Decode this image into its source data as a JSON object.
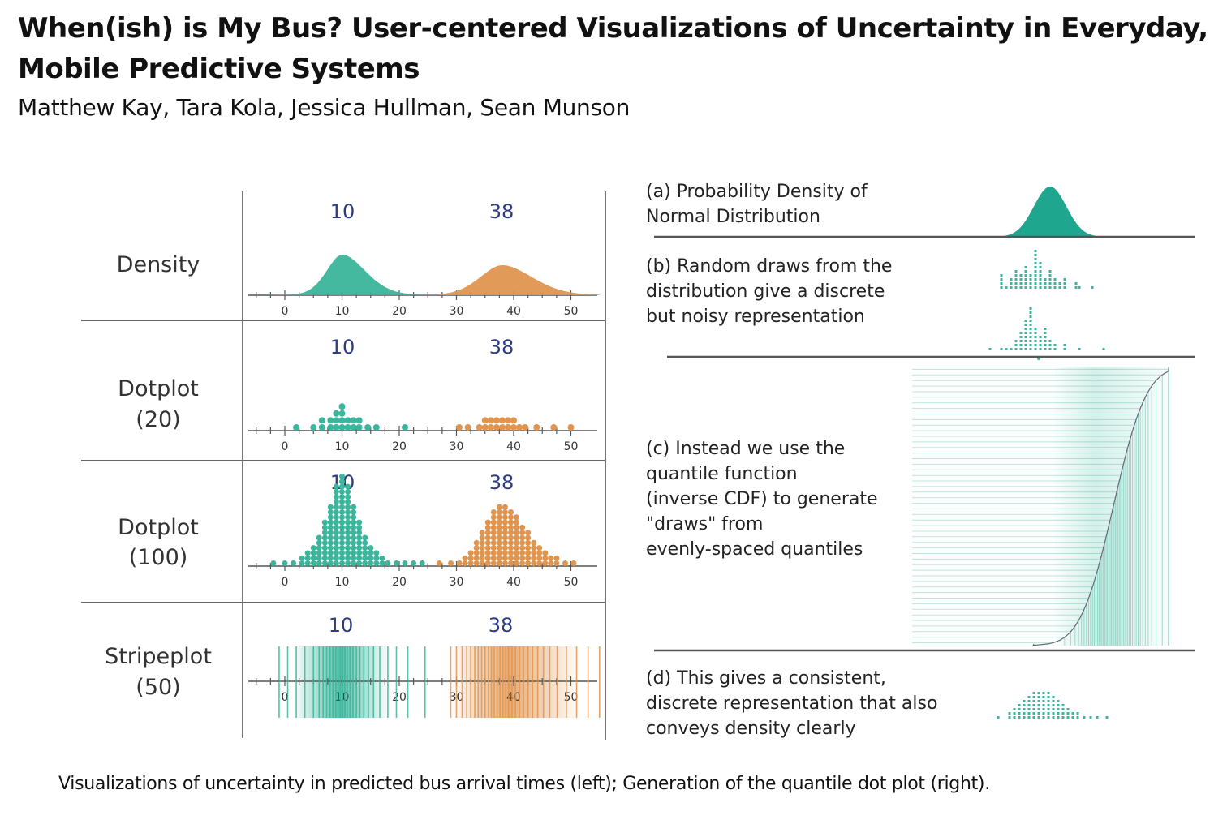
{
  "paper": {
    "title": "When(ish) is My Bus? User-centered Visualizations of Uncertainty in Everyday, Mobile Predictive Systems",
    "authors": "Matthew Kay, Tara Kola, Jessica Hullman, Sean Munson",
    "caption": "Visualizations of uncertainty in predicted bus arrival times (left); Generation of the quantile dot plot (right)."
  },
  "chart_data": [
    {
      "type": "area",
      "row_label": "Density",
      "x_ticks": [
        0,
        10,
        20,
        30,
        40,
        50
      ],
      "xlim": [
        -5,
        55
      ],
      "series": [
        {
          "median": 10,
          "color": "#3bb59b"
        },
        {
          "median": 38,
          "color": "#e0954f"
        }
      ],
      "median_labels": [
        "10",
        "38"
      ]
    },
    {
      "type": "scatter",
      "row_label": "Dotplot (20)",
      "x_ticks": [
        0,
        10,
        20,
        30,
        40,
        50
      ],
      "series": [
        {
          "median": 10,
          "color": "#3bb59b",
          "n": 20
        },
        {
          "median": 38,
          "color": "#e0954f",
          "n": 20
        }
      ],
      "median_labels": [
        "10",
        "38"
      ]
    },
    {
      "type": "scatter",
      "row_label": "Dotplot (100)",
      "x_ticks": [
        0,
        10,
        20,
        30,
        40,
        50
      ],
      "series": [
        {
          "median": 10,
          "color": "#3bb59b",
          "n": 100
        },
        {
          "median": 38,
          "color": "#e0954f",
          "n": 100
        }
      ],
      "median_labels": [
        "10",
        "38"
      ]
    },
    {
      "type": "bar",
      "row_label": "Stripeplot (50)",
      "x_ticks": [
        0,
        10,
        20,
        30,
        40,
        50
      ],
      "series": [
        {
          "median": 10,
          "color": "#3bb59b",
          "n": 50
        },
        {
          "median": 38,
          "color": "#e0954f",
          "n": 50
        }
      ],
      "median_labels": [
        "10",
        "38"
      ]
    }
  ],
  "rows": [
    {
      "label_lines": [
        "Density"
      ],
      "medians": [
        "10",
        "38"
      ]
    },
    {
      "label_lines": [
        "Dotplot",
        "(20)"
      ],
      "medians": [
        "10",
        "38"
      ]
    },
    {
      "label_lines": [
        "Dotplot",
        "(100)"
      ],
      "medians": [
        "10",
        "38"
      ]
    },
    {
      "label_lines": [
        "Stripeplot",
        "(50)"
      ],
      "medians": [
        "10",
        "38"
      ]
    }
  ],
  "ticks": [
    "0",
    "10",
    "20",
    "30",
    "40",
    "50"
  ],
  "steps": {
    "a": [
      "(a) Probability Density of",
      "Normal Distribution"
    ],
    "b": [
      "(b) Random draws from the",
      "distribution give a discrete",
      "but noisy representation"
    ],
    "c": [
      "(c) Instead we use the",
      "quantile function",
      "(inverse CDF) to generate",
      "\"draws\" from",
      "evenly-spaced quantiles"
    ],
    "d": [
      "(d) This gives a consistent,",
      "discrete representation that also",
      "conveys density clearly"
    ]
  },
  "colors": {
    "teal": "#3bb59b",
    "orange": "#e0954f",
    "median_text": "#2e3a82",
    "teal_dark": "#1fa68e"
  }
}
